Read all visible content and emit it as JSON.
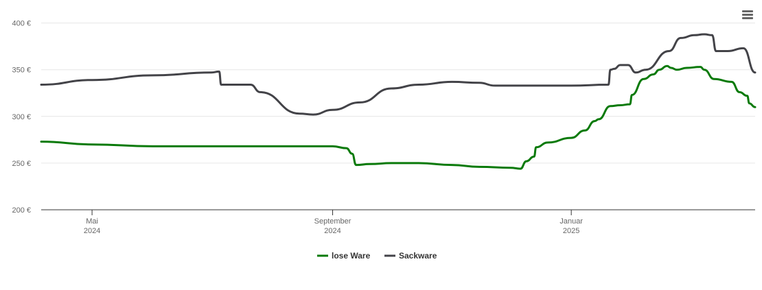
{
  "chart_data": {
    "type": "line",
    "y_ticks": [
      "200 €",
      "250 €",
      "300 €",
      "350 €",
      "400 €"
    ],
    "y_tick_values": [
      200,
      250,
      300,
      350,
      400
    ],
    "ylim": [
      200,
      410
    ],
    "x_ticks": [
      {
        "date": "2024-05-01",
        "label1": "Mai",
        "label2": "2024"
      },
      {
        "date": "2024-09-01",
        "label1": "September",
        "label2": "2024"
      },
      {
        "date": "2025-01-01",
        "label1": "Januar",
        "label2": "2025"
      }
    ],
    "xlim": [
      "2024-04-05",
      "2025-04-05"
    ],
    "grid": true,
    "legend_position": "bottom-center",
    "series": [
      {
        "name": "lose Ware",
        "color": "#0a7a0a",
        "points": [
          [
            "2024-04-05",
            273
          ],
          [
            "2024-05-01",
            270
          ],
          [
            "2024-06-01",
            268
          ],
          [
            "2024-07-01",
            268
          ],
          [
            "2024-08-01",
            268
          ],
          [
            "2024-09-01",
            268
          ],
          [
            "2024-09-08",
            266
          ],
          [
            "2024-09-11",
            260
          ],
          [
            "2024-09-13",
            248
          ],
          [
            "2024-09-20",
            249
          ],
          [
            "2024-10-01",
            250
          ],
          [
            "2024-10-15",
            250
          ],
          [
            "2024-11-01",
            248
          ],
          [
            "2024-11-15",
            246
          ],
          [
            "2024-12-01",
            245
          ],
          [
            "2024-12-06",
            244
          ],
          [
            "2024-12-09",
            252
          ],
          [
            "2024-12-13",
            257
          ],
          [
            "2024-12-14",
            267
          ],
          [
            "2024-12-20",
            272
          ],
          [
            "2025-01-01",
            277
          ],
          [
            "2025-01-08",
            285
          ],
          [
            "2025-01-13",
            295
          ],
          [
            "2025-01-15",
            297
          ],
          [
            "2025-01-21",
            311
          ],
          [
            "2025-01-26",
            312
          ],
          [
            "2025-01-31",
            313
          ],
          [
            "2025-02-01",
            323
          ],
          [
            "2025-02-07",
            340
          ],
          [
            "2025-02-12",
            345
          ],
          [
            "2025-02-15",
            350
          ],
          [
            "2025-02-19",
            354
          ],
          [
            "2025-02-21",
            352
          ],
          [
            "2025-02-24",
            350
          ],
          [
            "2025-03-01",
            352
          ],
          [
            "2025-03-08",
            353
          ],
          [
            "2025-03-10",
            350
          ],
          [
            "2025-03-15",
            340
          ],
          [
            "2025-03-24",
            337
          ],
          [
            "2025-03-28",
            326
          ],
          [
            "2025-04-01",
            322
          ],
          [
            "2025-04-02",
            314
          ],
          [
            "2025-04-05",
            310
          ]
        ]
      },
      {
        "name": "Sackware",
        "color": "#434348",
        "points": [
          [
            "2024-04-05",
            334
          ],
          [
            "2024-05-01",
            339
          ],
          [
            "2024-06-01",
            344
          ],
          [
            "2024-07-01",
            347
          ],
          [
            "2024-07-05",
            348
          ],
          [
            "2024-07-06",
            334
          ],
          [
            "2024-07-21",
            334
          ],
          [
            "2024-07-26",
            326
          ],
          [
            "2024-08-15",
            303
          ],
          [
            "2024-08-22",
            302
          ],
          [
            "2024-09-01",
            307
          ],
          [
            "2024-09-15",
            315
          ],
          [
            "2024-10-01",
            330
          ],
          [
            "2024-10-15",
            334
          ],
          [
            "2024-11-01",
            337
          ],
          [
            "2024-11-15",
            336
          ],
          [
            "2024-11-23",
            333
          ],
          [
            "2024-12-15",
            333
          ],
          [
            "2025-01-01",
            333
          ],
          [
            "2025-01-20",
            334
          ],
          [
            "2025-01-21",
            350
          ],
          [
            "2025-01-23",
            351
          ],
          [
            "2025-01-26",
            355
          ],
          [
            "2025-01-30",
            355
          ],
          [
            "2025-02-03",
            347
          ],
          [
            "2025-02-08",
            350
          ],
          [
            "2025-02-20",
            370
          ],
          [
            "2025-02-26",
            384
          ],
          [
            "2025-03-05",
            387
          ],
          [
            "2025-03-10",
            388
          ],
          [
            "2025-03-14",
            387
          ],
          [
            "2025-03-16",
            370
          ],
          [
            "2025-03-22",
            370
          ],
          [
            "2025-03-30",
            373
          ],
          [
            "2025-04-05",
            347
          ]
        ]
      }
    ]
  },
  "legend": {
    "items": [
      {
        "label": "lose Ware",
        "color": "#0a7a0a"
      },
      {
        "label": "Sackware",
        "color": "#434348"
      }
    ]
  },
  "menu": {
    "icon": "hamburger-menu-icon"
  }
}
